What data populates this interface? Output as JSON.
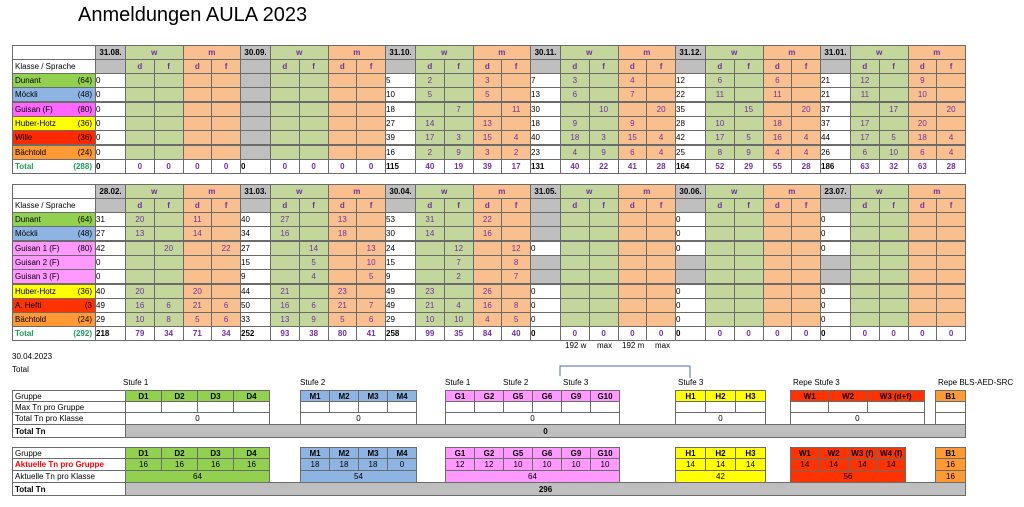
{
  "title": "Anmeldungen AULA 2023",
  "tables": [
    {
      "dates": [
        "31.08.",
        "30.09.",
        "31.10.",
        "30.11.",
        "31.12.",
        "31.01."
      ],
      "w": "w",
      "m": "m",
      "d": "d",
      "f": "f",
      "klasse": "Klasse / Sprache",
      "rows": [
        {
          "name": "Dunant",
          "count": "(64)",
          "color": "#92d050",
          "cells": [
            [
              0,
              null,
              null,
              null,
              null
            ],
            [
              null,
              null,
              null,
              null,
              null
            ],
            [
              5,
              2,
              null,
              3,
              null
            ],
            [
              7,
              3,
              null,
              4,
              null
            ],
            [
              12,
              6,
              null,
              6,
              null
            ],
            [
              21,
              12,
              null,
              9,
              null
            ]
          ]
        },
        {
          "name": "Möckli",
          "count": "(48)",
          "color": "#8db4e2",
          "cells": [
            [
              0,
              null,
              null,
              null,
              null
            ],
            [
              null,
              null,
              null,
              null,
              null
            ],
            [
              10,
              5,
              null,
              5,
              null
            ],
            [
              13,
              6,
              null,
              7,
              null
            ],
            [
              22,
              11,
              null,
              11,
              null
            ],
            [
              21,
              11,
              null,
              10,
              null
            ]
          ]
        },
        {
          "name": "Guisan  (F)",
          "count": "(80)",
          "color": "#ff66ff",
          "cells": [
            [
              0,
              null,
              null,
              null,
              null
            ],
            [
              null,
              null,
              null,
              null,
              null
            ],
            [
              18,
              null,
              7,
              null,
              11
            ],
            [
              30,
              null,
              10,
              null,
              20
            ],
            [
              35,
              null,
              15,
              null,
              20
            ],
            [
              37,
              null,
              17,
              null,
              20
            ]
          ]
        },
        {
          "name": "Huber-Hotz",
          "count": "(36)",
          "color": "#ffff00",
          "cells": [
            [
              0,
              null,
              null,
              null,
              null
            ],
            [
              null,
              null,
              null,
              null,
              null
            ],
            [
              27,
              14,
              null,
              13,
              null
            ],
            [
              18,
              9,
              null,
              9,
              null
            ],
            [
              28,
              10,
              null,
              18,
              null
            ],
            [
              37,
              17,
              null,
              20,
              null
            ]
          ]
        },
        {
          "name": "Wille",
          "count": "(36)",
          "color": "#ff2a00",
          "cells": [
            [
              0,
              null,
              null,
              null,
              null
            ],
            [
              null,
              null,
              null,
              null,
              null
            ],
            [
              39,
              17,
              3,
              15,
              4
            ],
            [
              40,
              18,
              3,
              15,
              4
            ],
            [
              42,
              17,
              5,
              16,
              4
            ],
            [
              44,
              17,
              5,
              18,
              4
            ]
          ]
        },
        {
          "name": "Bächtold",
          "count": "(24)",
          "color": "#ff9933",
          "cells": [
            [
              0,
              null,
              null,
              null,
              null
            ],
            [
              null,
              null,
              null,
              null,
              null
            ],
            [
              16,
              2,
              9,
              3,
              2
            ],
            [
              23,
              4,
              9,
              6,
              4
            ],
            [
              25,
              8,
              9,
              4,
              4
            ],
            [
              26,
              6,
              10,
              6,
              4
            ]
          ]
        },
        {
          "name": "Total",
          "count": "(288)",
          "color": "#ffffff",
          "total": true,
          "cells": [
            [
              0,
              0,
              0,
              0,
              0
            ],
            [
              0,
              0,
              0,
              0,
              0
            ],
            [
              115,
              40,
              19,
              39,
              17
            ],
            [
              131,
              40,
              22,
              41,
              28
            ],
            [
              164,
              52,
              29,
              55,
              28
            ],
            [
              186,
              63,
              32,
              63,
              28
            ]
          ]
        }
      ]
    },
    {
      "dates": [
        "28.02.",
        "31.03.",
        "30.04.",
        "31.05.",
        "30.06.",
        "23.07."
      ],
      "w": "w",
      "m": "m",
      "d": "d",
      "f": "f",
      "klasse": "Klasse / Sprache",
      "rows": [
        {
          "name": "Dunant",
          "count": "(64)",
          "color": "#92d050",
          "cells": [
            [
              31,
              20,
              null,
              11,
              null
            ],
            [
              40,
              27,
              null,
              13,
              null
            ],
            [
              53,
              31,
              null,
              22,
              null
            ],
            [
              null,
              null,
              null,
              null,
              null
            ],
            [
              0,
              null,
              null,
              null,
              null
            ],
            [
              0,
              null,
              null,
              null,
              null
            ]
          ]
        },
        {
          "name": "Möckli",
          "count": "(48)",
          "color": "#8db4e2",
          "cells": [
            [
              27,
              13,
              null,
              14,
              null
            ],
            [
              34,
              16,
              null,
              18,
              null
            ],
            [
              30,
              14,
              null,
              16,
              null
            ],
            [
              null,
              null,
              null,
              null,
              null
            ],
            [
              0,
              null,
              null,
              null,
              null
            ],
            [
              0,
              null,
              null,
              null,
              null
            ]
          ]
        },
        {
          "name": "Guisan 1  (F)",
          "count": "(80)",
          "color": "#ff99ff",
          "cells": [
            [
              42,
              null,
              20,
              null,
              22
            ],
            [
              27,
              null,
              14,
              null,
              13
            ],
            [
              24,
              null,
              12,
              null,
              12
            ],
            [
              0,
              null,
              null,
              null,
              null
            ],
            [
              0,
              null,
              null,
              null,
              null
            ],
            [
              0,
              null,
              null,
              null,
              null
            ]
          ]
        },
        {
          "name": "Guisan 2  (F)",
          "color": "#ff99ff",
          "cells": [
            [
              0,
              null,
              null,
              null,
              null
            ],
            [
              15,
              null,
              5,
              null,
              10
            ],
            [
              15,
              null,
              7,
              null,
              8
            ],
            [
              null,
              null,
              null,
              null,
              null
            ],
            [
              null,
              null,
              null,
              null,
              null
            ],
            [
              null,
              null,
              null,
              null,
              null
            ]
          ]
        },
        {
          "name": "Guisan 3  (F)",
          "color": "#ff99ff",
          "cells": [
            [
              0,
              null,
              null,
              null,
              null
            ],
            [
              9,
              null,
              4,
              null,
              5
            ],
            [
              9,
              null,
              2,
              null,
              7
            ],
            [
              null,
              null,
              null,
              null,
              null
            ],
            [
              null,
              null,
              null,
              null,
              null
            ],
            [
              null,
              null,
              null,
              null,
              null
            ]
          ]
        },
        {
          "name": "Huber-Hotz",
          "count": "(36)",
          "color": "#ffff00",
          "cells": [
            [
              40,
              20,
              null,
              20,
              null
            ],
            [
              44,
              21,
              null,
              23,
              null
            ],
            [
              49,
              23,
              null,
              26,
              null
            ],
            [
              0,
              null,
              null,
              null,
              null
            ],
            [
              0,
              null,
              null,
              null,
              null
            ],
            [
              0,
              null,
              null,
              null,
              null
            ]
          ]
        },
        {
          "name": "A. Hefti",
          "count": "(3",
          "color": "#ff3300",
          "cells": [
            [
              49,
              16,
              6,
              21,
              6
            ],
            [
              50,
              16,
              6,
              21,
              7
            ],
            [
              49,
              21,
              4,
              16,
              8
            ],
            [
              0,
              null,
              null,
              null,
              null
            ],
            [
              0,
              null,
              null,
              null,
              null
            ],
            [
              0,
              null,
              null,
              null,
              null
            ]
          ]
        },
        {
          "name": "Bächtold",
          "count": "(24)",
          "color": "#ff9933",
          "cells": [
            [
              29,
              10,
              8,
              5,
              6
            ],
            [
              33,
              13,
              9,
              5,
              6
            ],
            [
              29,
              10,
              10,
              4,
              5
            ],
            [
              0,
              null,
              null,
              null,
              null
            ],
            [
              0,
              null,
              null,
              null,
              null
            ],
            [
              0,
              null,
              null,
              null,
              null
            ]
          ]
        },
        {
          "name": "Total",
          "count": "(292)",
          "color": "#ffffff",
          "total": true,
          "cells": [
            [
              218,
              79,
              34,
              71,
              34
            ],
            [
              252,
              93,
              38,
              80,
              41
            ],
            [
              258,
              99,
              35,
              84,
              40
            ],
            [
              0,
              0,
              0,
              0,
              0
            ],
            [
              0,
              0,
              0,
              0,
              0
            ],
            [
              0,
              0,
              0,
              0,
              0
            ]
          ]
        }
      ]
    }
  ],
  "notes": [
    "192 w",
    "max",
    "192 m",
    "max"
  ],
  "plan": {
    "date": "30.04.2023",
    "total": "Total",
    "stufen": [
      "Stufe 1",
      "Stufe 2",
      "Stufe 1",
      "Stufe 2",
      "Stufe 3",
      "Stufe 3",
      "Repe Stufe 3",
      "Repe BLS-AED-SRC"
    ],
    "section1": {
      "labels": [
        "Gruppe",
        "Max Tn pro Gruppe",
        "Total Tn pro Klasse",
        "Total Tn"
      ],
      "total": 0,
      "blocks": [
        {
          "groups": [
            "D1",
            "D2",
            "D3",
            "D4"
          ],
          "klasse": 0
        },
        {
          "groups": [
            "M1",
            "M2",
            "M3",
            "M4"
          ],
          "klasse": 0
        },
        {
          "groups": [
            "G1",
            "G2",
            "G5",
            "G6",
            "G9",
            "G10"
          ],
          "klasse": 0
        },
        {
          "groups": [
            "H1",
            "H2",
            "H3"
          ],
          "klasse": 0
        },
        {
          "groups": [
            "W1",
            "W2",
            "W3 (d+f)"
          ],
          "klasse": 0
        },
        {
          "groups": [
            "B1"
          ]
        }
      ]
    },
    "section2": {
      "labels": [
        "Gruppe",
        "Aktuelle Tn pro Gruppe",
        "Aktuelle Tn pro Klasse",
        "Total Tn"
      ],
      "total": 296,
      "blocks": [
        {
          "groups": [
            "D1",
            "D2",
            "D3",
            "D4"
          ],
          "values": [
            16,
            16,
            16,
            16
          ],
          "klasse": 64
        },
        {
          "groups": [
            "M1",
            "M2",
            "M3",
            "M4"
          ],
          "values": [
            18,
            18,
            18,
            0
          ],
          "klasse": 54
        },
        {
          "groups": [
            "G1",
            "G2",
            "G5",
            "G6",
            "G9",
            "G10"
          ],
          "values": [
            12,
            12,
            10,
            10,
            10,
            10
          ],
          "klasse": 64
        },
        {
          "groups": [
            "H1",
            "H2",
            "H3"
          ],
          "values": [
            14,
            14,
            14
          ],
          "klasse": 42
        },
        {
          "groups": [
            "W1",
            "W2",
            "W3 (f)",
            "W4 (f)"
          ],
          "values": [
            14,
            14,
            14,
            14
          ],
          "klasse": 56
        },
        {
          "groups": [
            "B1"
          ],
          "values": [
            16
          ],
          "klasse": 16
        }
      ]
    }
  }
}
